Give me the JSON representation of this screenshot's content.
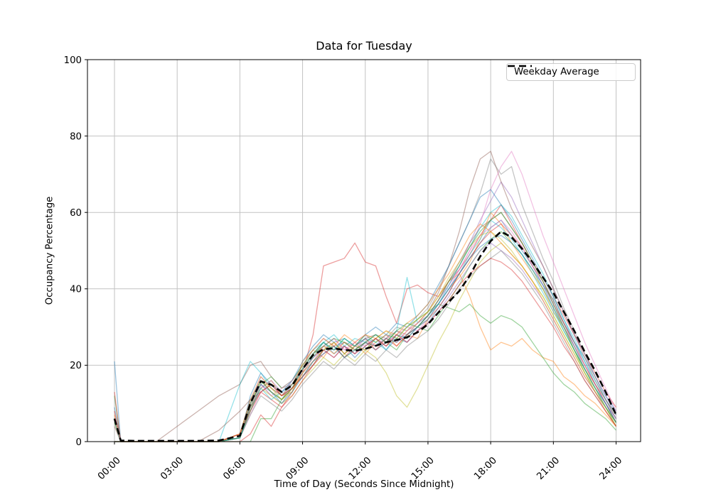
{
  "figure": {
    "title": "Data for Tuesday"
  },
  "axes": {
    "xlabel": "Time of Day (Seconds Since Midnight)",
    "ylabel": "Occupancy Percentage",
    "x_ticks": [
      {
        "hour": 0,
        "label": "00:00"
      },
      {
        "hour": 3,
        "label": "03:00"
      },
      {
        "hour": 6,
        "label": "06:00"
      },
      {
        "hour": 9,
        "label": "09:00"
      },
      {
        "hour": 12,
        "label": "12:00"
      },
      {
        "hour": 15,
        "label": "15:00"
      },
      {
        "hour": 18,
        "label": "18:00"
      },
      {
        "hour": 21,
        "label": "21:00"
      },
      {
        "hour": 24,
        "label": "24:00"
      }
    ],
    "y_ticks": [
      0,
      20,
      40,
      60,
      80,
      100
    ],
    "xlim_hours": [
      0,
      24
    ],
    "ylim": [
      0,
      100
    ],
    "grid": true,
    "grid_color": "#c2c2c2",
    "spine_color": "#000000"
  },
  "legend": {
    "label": "Weekday Average",
    "line_color": "#000000",
    "line_style": "dashed"
  },
  "chart_data": {
    "type": "line",
    "title": "Data for Tuesday",
    "xlabel": "Time of Day (Seconds Since Midnight)",
    "ylabel": "Occupancy Percentage",
    "xlim": [
      0,
      24
    ],
    "ylim": [
      0,
      100
    ],
    "x_hours": [
      0,
      0.3,
      1,
      2,
      3,
      4,
      5,
      6,
      6.5,
      7,
      7.5,
      8,
      8.5,
      9,
      9.5,
      10,
      10.5,
      11,
      11.5,
      12,
      12.5,
      13,
      13.5,
      14,
      14.5,
      15,
      15.5,
      16,
      16.5,
      17,
      17.5,
      18,
      18.5,
      19,
      19.5,
      20,
      20.5,
      21,
      21.5,
      22,
      22.5,
      23,
      23.5,
      24
    ],
    "average": {
      "name": "Weekday Average",
      "color": "#000000",
      "dashed": true,
      "values": [
        6,
        0.3,
        0.2,
        0.2,
        0.2,
        0.2,
        0.3,
        1.5,
        10,
        15.8,
        14.9,
        13,
        14.7,
        19,
        22.7,
        24.2,
        24.4,
        24,
        23.8,
        24.3,
        25.1,
        26,
        26.6,
        27.3,
        28.6,
        30.7,
        33.8,
        36.6,
        39.4,
        43.5,
        48.5,
        52.5,
        55,
        53.5,
        50.5,
        47,
        43,
        39,
        34,
        29,
        23.5,
        18.5,
        13,
        7
      ]
    },
    "series": [
      {
        "color": "#1f77b4",
        "values": [
          21,
          0,
          0,
          0,
          0,
          0,
          0,
          2,
          11,
          16,
          13,
          11,
          15,
          19,
          23,
          26,
          23,
          25,
          22,
          25,
          27,
          24,
          27,
          26,
          29,
          31,
          35,
          39,
          44,
          48,
          52,
          56,
          58,
          54,
          50,
          46,
          41,
          37,
          31,
          26,
          22,
          17,
          12,
          8
        ]
      },
      {
        "color": "#ff7f0e",
        "values": [
          5,
          0,
          0,
          0,
          0,
          0,
          0,
          1,
          8,
          14,
          16,
          12,
          13,
          21,
          24,
          22,
          26,
          23,
          26,
          23,
          26,
          28,
          25,
          28,
          27,
          32,
          36,
          40,
          43,
          47,
          53,
          60,
          57,
          52,
          48,
          44,
          40,
          34,
          30,
          24,
          19,
          15,
          10,
          5
        ]
      },
      {
        "color": "#2ca02c",
        "values": [
          12,
          0,
          0,
          0,
          0,
          0,
          0,
          0,
          0,
          6,
          6,
          11,
          14,
          17,
          20,
          24,
          25,
          22,
          24,
          26,
          24,
          26,
          24,
          28,
          30,
          29,
          33,
          37,
          41,
          46,
          50,
          53,
          55,
          52,
          49,
          45,
          40,
          35,
          29,
          24,
          18,
          13,
          9,
          4
        ]
      },
      {
        "color": "#d62728",
        "values": [
          0,
          0,
          0,
          0,
          0,
          0,
          0,
          2,
          9,
          13,
          11,
          9,
          13,
          18,
          28,
          46,
          47,
          48,
          52,
          47,
          46,
          38,
          31,
          40,
          41,
          39,
          38,
          42,
          45,
          49,
          54,
          58,
          62,
          57,
          52,
          47,
          43,
          38,
          33,
          28,
          23,
          18,
          13,
          9
        ]
      },
      {
        "color": "#9467bd",
        "values": [
          0,
          0,
          0,
          0,
          0,
          0,
          0,
          1,
          10,
          17,
          14,
          12,
          16,
          20,
          24,
          27,
          25,
          26,
          24,
          27,
          25,
          27,
          29,
          27,
          30,
          33,
          37,
          41,
          46,
          52,
          58,
          63,
          68,
          64,
          58,
          52,
          46,
          40,
          34,
          28,
          23,
          17,
          12,
          7
        ]
      },
      {
        "color": "#8c564b",
        "values": [
          6,
          0,
          0,
          0,
          4,
          8,
          12,
          15,
          20,
          21,
          17,
          14,
          15,
          19,
          22,
          25,
          24,
          26,
          25,
          27,
          28,
          26,
          29,
          28,
          31,
          34,
          39,
          46,
          55,
          66,
          74,
          76,
          68,
          61,
          56,
          51,
          46,
          40,
          34,
          28,
          22,
          16,
          11,
          6
        ]
      },
      {
        "color": "#e377c2",
        "values": [
          0,
          0,
          0,
          0,
          0,
          0,
          0,
          1,
          7,
          13,
          15,
          12,
          14,
          18,
          21,
          25,
          27,
          24,
          26,
          25,
          27,
          25,
          28,
          30,
          29,
          32,
          36,
          40,
          45,
          50,
          57,
          66,
          72,
          76,
          70,
          62,
          54,
          47,
          40,
          33,
          26,
          20,
          14,
          8
        ]
      },
      {
        "color": "#7f7f7f",
        "values": [
          0,
          0,
          0,
          0,
          0,
          0,
          0,
          2,
          10,
          15,
          12,
          10,
          14,
          19,
          23,
          26,
          24,
          25,
          23,
          26,
          28,
          27,
          30,
          29,
          32,
          35,
          40,
          46,
          52,
          58,
          65,
          74,
          70,
          72,
          62,
          55,
          48,
          42,
          35,
          29,
          23,
          17,
          11,
          6
        ]
      },
      {
        "color": "#bcbd22",
        "values": [
          5,
          0,
          0,
          0,
          0,
          0,
          0,
          1,
          9,
          14,
          12,
          10,
          12,
          16,
          19,
          22,
          20,
          23,
          21,
          24,
          22,
          18,
          12,
          9,
          14,
          20,
          26,
          31,
          37,
          42,
          47,
          50,
          52,
          49,
          46,
          42,
          38,
          33,
          28,
          23,
          18,
          13,
          9,
          4
        ]
      },
      {
        "color": "#17becf",
        "values": [
          0,
          0,
          0,
          0,
          0,
          0,
          0,
          15,
          21,
          18,
          14,
          12,
          15,
          20,
          24,
          26,
          28,
          25,
          27,
          26,
          28,
          26,
          29,
          43,
          31,
          33,
          36,
          40,
          44,
          49,
          53,
          58,
          56,
          53,
          49,
          44,
          39,
          34,
          29,
          24,
          19,
          14,
          10,
          5
        ]
      },
      {
        "color": "#1f77b4",
        "values": [
          0,
          0,
          0,
          0,
          0,
          0,
          0,
          1,
          12,
          18,
          15,
          13,
          16,
          21,
          25,
          28,
          26,
          27,
          25,
          28,
          30,
          28,
          31,
          30,
          33,
          36,
          41,
          46,
          52,
          58,
          64,
          66,
          62,
          58,
          53,
          48,
          43,
          38,
          32,
          26,
          21,
          15,
          10,
          6
        ]
      },
      {
        "color": "#ff7f0e",
        "values": [
          7,
          0,
          0,
          0,
          0,
          0,
          0,
          2,
          10,
          16,
          13,
          11,
          14,
          18,
          22,
          25,
          23,
          26,
          24,
          26,
          25,
          27,
          26,
          29,
          31,
          34,
          38,
          42,
          44,
          38,
          30,
          24,
          26,
          25,
          27,
          24,
          22,
          21,
          17,
          15,
          12,
          10,
          7,
          4
        ]
      },
      {
        "color": "#2ca02c",
        "values": [
          0,
          0,
          0,
          0,
          0,
          0,
          0,
          1,
          8,
          15,
          17,
          14,
          16,
          20,
          23,
          26,
          24,
          27,
          25,
          28,
          26,
          28,
          27,
          30,
          32,
          34,
          36,
          35,
          34,
          36,
          33,
          31,
          33,
          32,
          30,
          26,
          22,
          18,
          15,
          13,
          10,
          8,
          6,
          3
        ]
      },
      {
        "color": "#d62728",
        "values": [
          13,
          0,
          0,
          0,
          0,
          0,
          0,
          0,
          2,
          7,
          4,
          9,
          12,
          16,
          20,
          23,
          25,
          22,
          25,
          27,
          24,
          27,
          25,
          28,
          30,
          32,
          35,
          39,
          44,
          48,
          52,
          55,
          57,
          54,
          51,
          46,
          42,
          36,
          31,
          25,
          20,
          15,
          11,
          7
        ]
      },
      {
        "color": "#9467bd",
        "values": [
          0,
          0,
          0,
          0,
          0,
          0,
          0,
          1,
          9,
          14,
          16,
          13,
          15,
          18,
          22,
          24,
          22,
          25,
          23,
          26,
          24,
          26,
          28,
          26,
          29,
          31,
          34,
          38,
          42,
          46,
          50,
          52,
          50,
          48,
          45,
          41,
          37,
          32,
          27,
          22,
          17,
          13,
          9,
          5
        ]
      },
      {
        "color": "#8c564b",
        "values": [
          4,
          0,
          0,
          0,
          0,
          0,
          3,
          8,
          11,
          13,
          15,
          12,
          14,
          17,
          21,
          24,
          26,
          23,
          25,
          24,
          27,
          25,
          28,
          27,
          30,
          33,
          37,
          42,
          47,
          52,
          56,
          58,
          60,
          56,
          52,
          47,
          42,
          37,
          31,
          26,
          20,
          15,
          10,
          5
        ]
      },
      {
        "color": "#e377c2",
        "values": [
          0,
          0,
          0,
          0,
          0,
          0,
          0,
          2,
          9,
          15,
          12,
          14,
          16,
          19,
          23,
          25,
          27,
          24,
          26,
          28,
          25,
          28,
          26,
          29,
          31,
          33,
          37,
          41,
          45,
          50,
          54,
          56,
          58,
          55,
          51,
          46,
          41,
          36,
          30,
          25,
          20,
          15,
          10,
          6
        ]
      },
      {
        "color": "#7f7f7f",
        "values": [
          6,
          0,
          0,
          0,
          0,
          0,
          0,
          1,
          7,
          12,
          10,
          8,
          11,
          15,
          18,
          21,
          19,
          22,
          20,
          23,
          21,
          24,
          22,
          25,
          27,
          29,
          32,
          36,
          40,
          43,
          46,
          48,
          50,
          47,
          44,
          40,
          36,
          31,
          26,
          21,
          16,
          12,
          8,
          4
        ]
      },
      {
        "color": "#bcbd22",
        "values": [
          0,
          0,
          0,
          0,
          0,
          0,
          0,
          2,
          10,
          16,
          14,
          11,
          13,
          18,
          21,
          24,
          26,
          23,
          25,
          24,
          27,
          29,
          27,
          30,
          32,
          34,
          38,
          43,
          47,
          51,
          54,
          55,
          53,
          50,
          46,
          42,
          38,
          33,
          28,
          23,
          18,
          14,
          9,
          5
        ]
      },
      {
        "color": "#17becf",
        "values": [
          5,
          0,
          0,
          0,
          0,
          0,
          0,
          1,
          8,
          14,
          11,
          13,
          15,
          19,
          22,
          26,
          24,
          27,
          25,
          27,
          26,
          24,
          28,
          27,
          30,
          32,
          36,
          41,
          46,
          51,
          56,
          60,
          62,
          59,
          54,
          49,
          44,
          38,
          32,
          27,
          21,
          16,
          11,
          7
        ]
      },
      {
        "color": "#1f77b4",
        "values": [
          9,
          0,
          0,
          0,
          0,
          0,
          0,
          1,
          10,
          15,
          13,
          10,
          13,
          17,
          21,
          23,
          25,
          22,
          24,
          26,
          25,
          27,
          26,
          28,
          30,
          33,
          36,
          40,
          44,
          48,
          51,
          53,
          54,
          52,
          49,
          45,
          41,
          35,
          30,
          25,
          19,
          14,
          10,
          5
        ]
      },
      {
        "color": "#ff7f0e",
        "values": [
          0,
          0,
          0,
          0,
          0,
          0,
          0,
          2,
          11,
          17,
          14,
          12,
          15,
          20,
          24,
          27,
          25,
          28,
          26,
          28,
          27,
          29,
          28,
          31,
          33,
          36,
          40,
          44,
          49,
          54,
          57,
          55,
          52,
          49,
          46,
          42,
          37,
          32,
          27,
          22,
          17,
          13,
          8,
          4
        ]
      },
      {
        "color": "#2ca02c",
        "values": [
          0,
          0,
          0,
          0,
          0,
          0,
          0,
          1,
          9,
          16,
          13,
          11,
          14,
          19,
          23,
          25,
          27,
          26,
          24,
          26,
          28,
          26,
          29,
          31,
          30,
          33,
          37,
          42,
          46,
          51,
          55,
          58,
          60,
          56,
          52,
          47,
          42,
          36,
          30,
          24,
          19,
          14,
          9,
          5
        ]
      },
      {
        "color": "#d62728",
        "values": [
          8,
          0,
          0,
          0,
          0,
          0,
          0,
          2,
          8,
          13,
          15,
          12,
          14,
          17,
          20,
          24,
          22,
          25,
          23,
          25,
          27,
          25,
          28,
          26,
          29,
          31,
          34,
          37,
          41,
          44,
          46,
          48,
          47,
          45,
          42,
          38,
          34,
          30,
          25,
          21,
          16,
          12,
          8,
          4
        ]
      }
    ]
  }
}
